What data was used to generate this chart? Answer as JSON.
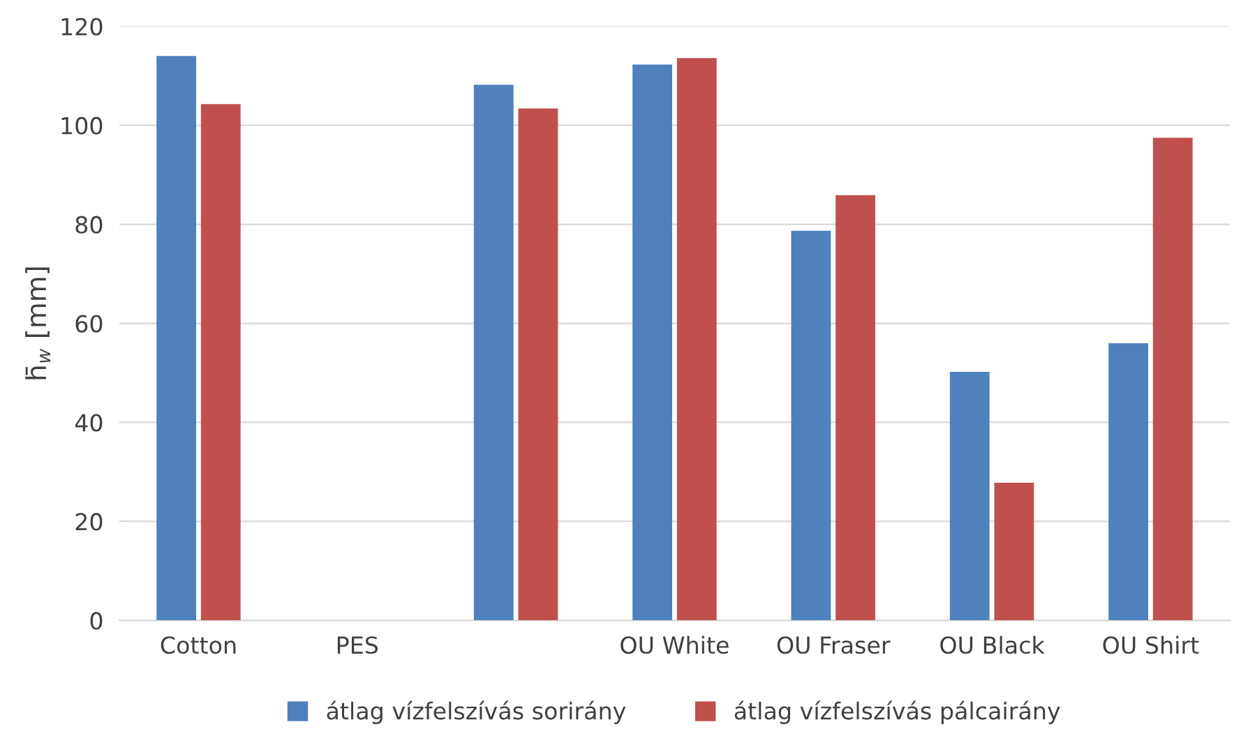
{
  "chart_data": {
    "type": "bar",
    "ylabel": "h̄$_{w}$ [mm]",
    "categories": [
      "Cotton",
      "PES",
      null,
      "OU White",
      "OU Fraser",
      "OU Black",
      "OU Shirt"
    ],
    "series": [
      {
        "name": "átlag vízfelszívás sorirány",
        "color": "#4f81bd",
        "values": [
          114,
          null,
          108.2,
          112.3,
          78.7,
          50.2,
          56
        ]
      },
      {
        "name": "átlag vízfelszívás pálcairány",
        "color": "#c0504d",
        "values": [
          104.3,
          null,
          103.4,
          113.6,
          85.9,
          27.8,
          97.5
        ]
      }
    ],
    "ylim": [
      0,
      120
    ],
    "yticks": [
      0,
      20,
      40,
      60,
      80,
      100,
      120
    ],
    "grid": "y",
    "legend": "bottom"
  }
}
